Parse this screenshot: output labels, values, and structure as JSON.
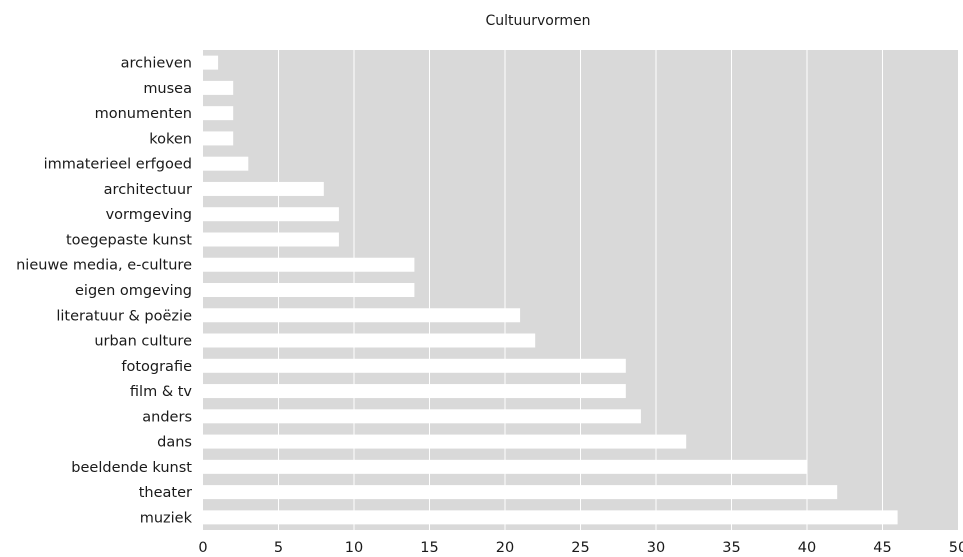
{
  "chart_data": {
    "type": "bar",
    "orientation": "horizontal",
    "title": "Cultuurvormen",
    "xlabel": "",
    "ylabel": "",
    "categories": [
      "archieven",
      "musea",
      "monumenten",
      "koken",
      "immaterieel erfgoed",
      "architectuur",
      "vormgeving",
      "toegepaste kunst",
      "nieuwe media, e-culture",
      "eigen omgeving",
      "literatuur & poëzie",
      "urban culture",
      "fotografie",
      "film & tv",
      "anders",
      "dans",
      "beeldende kunst",
      "theater",
      "muziek"
    ],
    "values": [
      1,
      2,
      2,
      2,
      3,
      8,
      9,
      9,
      14,
      14,
      21,
      22,
      28,
      28,
      29,
      32,
      40,
      42,
      46
    ],
    "xlim": [
      0,
      50
    ],
    "xticks": [
      0,
      5,
      10,
      15,
      20,
      25,
      30,
      35,
      40,
      45,
      50
    ],
    "grid": true,
    "colors": {
      "plot_bg": "#d9d9d9",
      "bar": "#ffffff",
      "grid": "#ffffff",
      "text": "#1a1a1a"
    }
  }
}
